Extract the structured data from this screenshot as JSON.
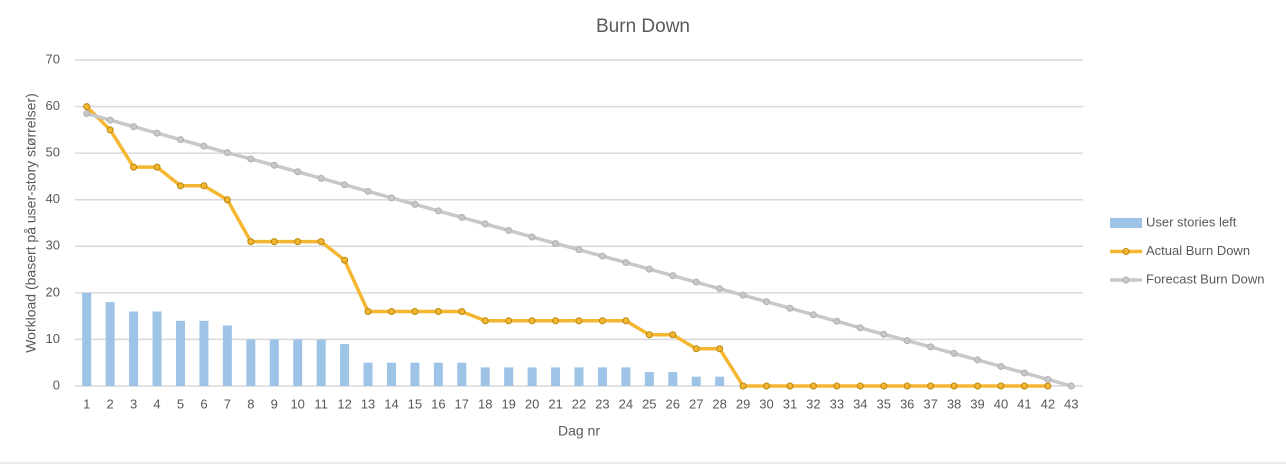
{
  "chart_data": {
    "type": "bar-line",
    "title": "Burn Down",
    "x_label": "Dag nr",
    "y_label": "Workload (basert på user-story størrelser)",
    "categories": [
      1,
      2,
      3,
      4,
      5,
      6,
      7,
      8,
      9,
      10,
      11,
      12,
      13,
      14,
      15,
      16,
      17,
      18,
      19,
      20,
      21,
      22,
      23,
      24,
      25,
      26,
      27,
      28,
      29,
      30,
      31,
      32,
      33,
      34,
      35,
      36,
      37,
      38,
      39,
      40,
      41,
      42,
      43
    ],
    "series": [
      {
        "name": "User stories left",
        "type": "bar",
        "color": "#9dc3e6",
        "values": [
          20,
          18,
          16,
          16,
          14,
          14,
          13,
          10,
          10,
          10,
          10,
          9,
          5,
          5,
          5,
          5,
          5,
          4,
          4,
          4,
          4,
          4,
          4,
          4,
          3,
          3,
          2,
          2,
          0,
          0,
          0,
          0,
          0,
          0,
          0,
          0,
          0,
          0,
          0,
          0,
          0,
          0,
          0
        ]
      },
      {
        "name": "Actual Burn Down",
        "type": "line",
        "color": "#f5b731",
        "values": [
          60,
          55,
          47,
          47,
          43,
          43,
          40,
          31,
          31,
          31,
          31,
          27,
          16,
          16,
          16,
          16,
          16,
          14,
          14,
          14,
          14,
          14,
          14,
          14,
          11,
          11,
          8,
          8,
          0,
          0,
          0,
          0,
          0,
          0,
          0,
          0,
          0,
          0,
          0,
          0,
          0,
          0,
          null
        ]
      },
      {
        "name": "Forecast Burn Down",
        "type": "line",
        "color": "#c8c8c8",
        "values": [
          58.5,
          57.1,
          55.7,
          54.3,
          52.9,
          51.5,
          50.1,
          48.75,
          47.4,
          46,
          44.6,
          43.2,
          41.8,
          40.4,
          39,
          37.6,
          36.2,
          34.8,
          33.4,
          32,
          30.6,
          29.25,
          27.9,
          26.5,
          25.1,
          23.7,
          22.3,
          20.9,
          19.5,
          18.1,
          16.7,
          15.3,
          13.9,
          12.5,
          11.1,
          9.75,
          8.4,
          7,
          5.6,
          4.2,
          2.8,
          1.4,
          0
        ]
      }
    ],
    "ylim": [
      0,
      70
    ],
    "yticks": [
      0,
      10,
      20,
      30,
      40,
      50,
      60,
      70
    ],
    "grid": true,
    "legend": "right"
  }
}
